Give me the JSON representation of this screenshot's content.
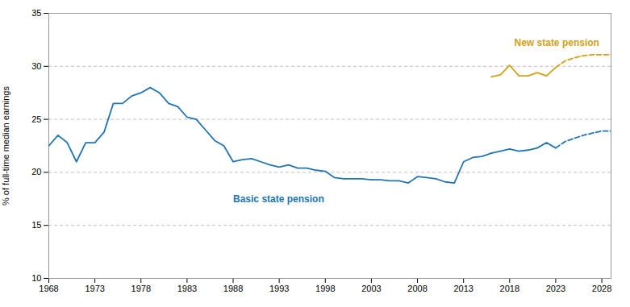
{
  "chart_data": {
    "type": "line",
    "ylabel": "% of full-time median earnings",
    "xlim": [
      1968,
      2029
    ],
    "xticks": [
      1968,
      1973,
      1978,
      1983,
      1988,
      1993,
      1998,
      2003,
      2008,
      2013,
      2018,
      2023,
      2028
    ],
    "ylim": [
      10,
      35
    ],
    "yticks": [
      10,
      15,
      20,
      25,
      30,
      35
    ],
    "grid": true,
    "series": [
      {
        "name": "Basic state pension",
        "color": "#2175B4",
        "line_style": "solid",
        "x": [
          1968,
          1969,
          1970,
          1971,
          1972,
          1973,
          1974,
          1975,
          1976,
          1977,
          1978,
          1979,
          1980,
          1981,
          1982,
          1983,
          1984,
          1985,
          1986,
          1987,
          1988,
          1989,
          1990,
          1991,
          1992,
          1993,
          1994,
          1995,
          1996,
          1997,
          1998,
          1999,
          2000,
          2001,
          2002,
          2003,
          2004,
          2005,
          2006,
          2007,
          2008,
          2009,
          2010,
          2011,
          2012,
          2013,
          2014,
          2015,
          2016,
          2017,
          2018,
          2019,
          2020,
          2021,
          2022,
          2023
        ],
        "values": [
          22.5,
          23.5,
          22.8,
          21.0,
          22.8,
          22.8,
          23.8,
          26.5,
          26.5,
          27.2,
          27.5,
          28.0,
          27.5,
          26.5,
          26.2,
          25.2,
          25.0,
          24.0,
          23.0,
          22.5,
          21.0,
          21.2,
          21.3,
          21.0,
          20.7,
          20.5,
          20.7,
          20.4,
          20.4,
          20.2,
          20.1,
          19.5,
          19.4,
          19.4,
          19.4,
          19.3,
          19.3,
          19.2,
          19.2,
          19.0,
          19.6,
          19.5,
          19.4,
          19.1,
          19.0,
          21.0,
          21.4,
          21.5,
          21.8,
          22.0,
          22.2,
          22.0,
          22.1,
          22.3,
          22.8,
          22.3
        ]
      },
      {
        "name": "Basic state pension",
        "color": "#2175B4",
        "line_style": "dashed",
        "x": [
          2023,
          2024,
          2025,
          2026,
          2027,
          2028,
          2029
        ],
        "values": [
          22.3,
          22.9,
          23.2,
          23.5,
          23.7,
          23.9,
          23.9
        ]
      },
      {
        "name": "New state pension",
        "color": "#D4A017",
        "line_style": "solid",
        "x": [
          2016,
          2017,
          2018,
          2019,
          2020,
          2021,
          2022,
          2023
        ],
        "values": [
          29.0,
          29.2,
          30.1,
          29.1,
          29.1,
          29.4,
          29.1,
          29.9
        ]
      },
      {
        "name": "New state pension",
        "color": "#D4A017",
        "line_style": "dashed",
        "x": [
          2023,
          2024,
          2025,
          2026,
          2027,
          2028,
          2029
        ],
        "values": [
          29.9,
          30.5,
          30.8,
          31.0,
          31.1,
          31.1,
          31.1
        ]
      }
    ],
    "annotations": [
      {
        "text": "Basic state pension",
        "x": 1988,
        "y": 17.8,
        "color": "#2175B4"
      },
      {
        "text": "New state pension",
        "x": 2018.5,
        "y": 32.6,
        "color": "#D4A017"
      }
    ]
  }
}
